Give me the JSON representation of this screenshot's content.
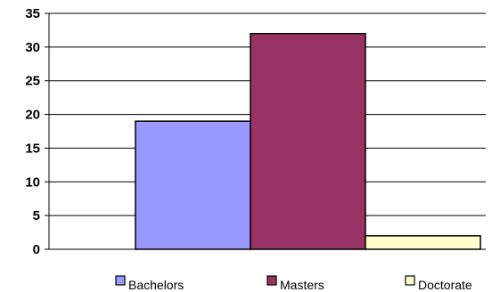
{
  "chart_data": {
    "type": "bar",
    "title": "",
    "xlabel": "",
    "ylabel": "",
    "ylim": [
      0,
      35
    ],
    "y_ticks": [
      0,
      5,
      10,
      15,
      20,
      25,
      30,
      35
    ],
    "grid": true,
    "legend_position": "bottom",
    "series": [
      {
        "name": "Bachelors",
        "value": 19,
        "color": "#9999ff"
      },
      {
        "name": "Masters",
        "value": 32,
        "color": "#993366"
      },
      {
        "name": "Doctorate",
        "value": 2,
        "color": "#ffffcc"
      }
    ]
  }
}
